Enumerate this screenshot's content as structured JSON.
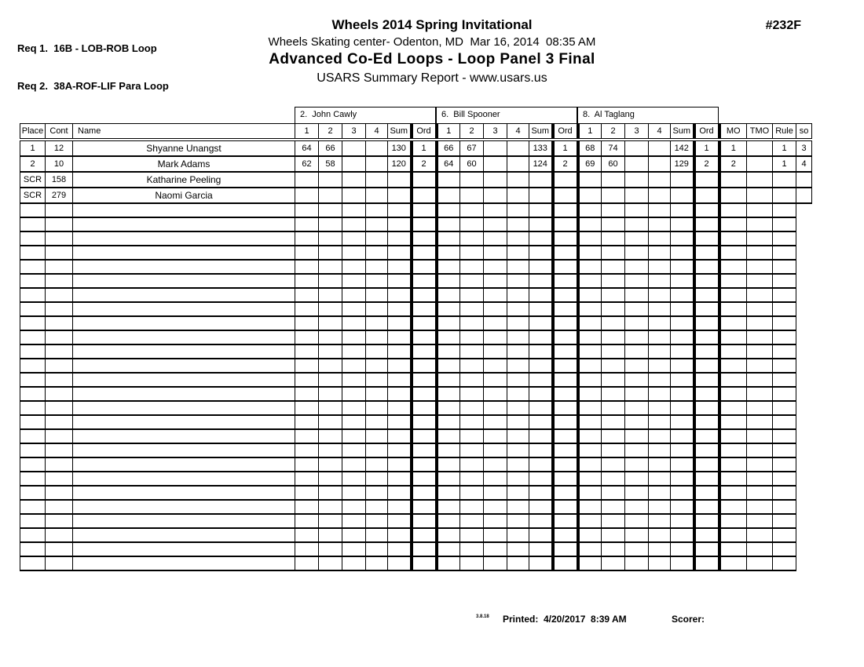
{
  "colors": {
    "ink": "#000000",
    "paper": "#ffffff"
  },
  "header": {
    "req1": "Req 1.  16B - LOB-ROB Loop",
    "req2": "Req 2.  38A-ROF-LIF Para Loop",
    "title": "Wheels 2014 Spring Invitational",
    "venue_date": "Wheels Skating center- Odenton, MD  Mar 16, 2014  08:35 AM",
    "event": "Advanced Co-Ed Loops - Loop Panel 3 Final",
    "report": "USARS Summary Report - www.usars.us",
    "event_code": "#232F"
  },
  "judges": [
    {
      "label": "2.  John Cawly"
    },
    {
      "label": "6.  Bill Spooner"
    },
    {
      "label": "8.  Al Taglang"
    }
  ],
  "table": {
    "left_headers": [
      "Place",
      "Cont",
      "Name"
    ],
    "judge_sub_headers": [
      "1",
      "2",
      "3",
      "4",
      "Sum",
      "Ord"
    ],
    "right_headers": [
      "MO",
      "TMO",
      "Rule",
      "so"
    ],
    "rows": [
      {
        "place": "1",
        "cont": "12",
        "name": "Shyanne Unangst",
        "judges": [
          [
            "64",
            "66",
            "",
            "",
            "130",
            "1"
          ],
          [
            "66",
            "67",
            "",
            "",
            "133",
            "1"
          ],
          [
            "68",
            "74",
            "",
            "",
            "142",
            "1"
          ]
        ],
        "mo": "1",
        "tmo": "",
        "rule": "1",
        "so": "3"
      },
      {
        "place": "2",
        "cont": "10",
        "name": "Mark Adams",
        "judges": [
          [
            "62",
            "58",
            "",
            "",
            "120",
            "2"
          ],
          [
            "64",
            "60",
            "",
            "",
            "124",
            "2"
          ],
          [
            "69",
            "60",
            "",
            "",
            "129",
            "2"
          ]
        ],
        "mo": "2",
        "tmo": "",
        "rule": "1",
        "so": "4"
      },
      {
        "place": "SCR",
        "cont": "158",
        "name": "Katharine Peeling",
        "judges": [
          [
            "",
            "",
            "",
            "",
            "",
            ""
          ],
          [
            "",
            "",
            "",
            "",
            "",
            ""
          ],
          [
            "",
            "",
            "",
            "",
            "",
            ""
          ]
        ],
        "mo": "",
        "tmo": "",
        "rule": "",
        "so": ""
      },
      {
        "place": "SCR",
        "cont": "279",
        "name": "Naomi Garcia",
        "judges": [
          [
            "",
            "",
            "",
            "",
            "",
            ""
          ],
          [
            "",
            "",
            "",
            "",
            "",
            ""
          ],
          [
            "",
            "",
            "",
            "",
            "",
            ""
          ]
        ],
        "mo": "",
        "tmo": "",
        "rule": "",
        "so": ""
      }
    ],
    "empty_row_count": 26
  },
  "footer": {
    "version": "3.8.18",
    "printed": "Printed:  4/20/2017  8:39 AM",
    "scorer": "Scorer:"
  }
}
